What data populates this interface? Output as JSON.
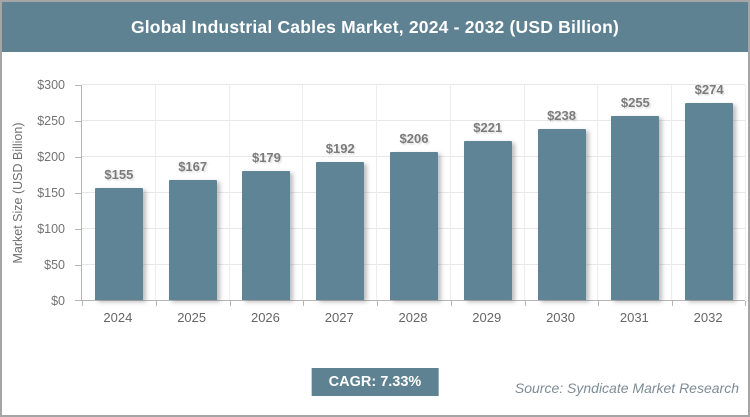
{
  "header": {
    "title": "Global Industrial Cables Market, 2024 - 2032 (USD Billion)"
  },
  "chart_data": {
    "type": "bar",
    "title": "Global Industrial Cables Market, 2024 - 2032 (USD Billion)",
    "categories": [
      "2024",
      "2025",
      "2026",
      "2027",
      "2028",
      "2029",
      "2030",
      "2031",
      "2032"
    ],
    "values": [
      155,
      167,
      179,
      192,
      206,
      221,
      238,
      255,
      274
    ],
    "bar_labels": [
      "$155",
      "$167",
      "$179",
      "$192",
      "$206",
      "$221",
      "$238",
      "$255",
      "$274"
    ],
    "xlabel": "",
    "ylabel": "Market Size (USD Billion)",
    "ylim": [
      0,
      300
    ],
    "yticks": [
      {
        "value": 0,
        "label": "$0"
      },
      {
        "value": 50,
        "label": "$50"
      },
      {
        "value": 100,
        "label": "$100"
      },
      {
        "value": 150,
        "label": "$150"
      },
      {
        "value": 200,
        "label": "$200"
      },
      {
        "value": 250,
        "label": "$250"
      },
      {
        "value": 300,
        "label": "$300"
      }
    ],
    "grid": true,
    "legend": "none"
  },
  "footer": {
    "cagr_label": "CAGR: 7.33%",
    "source": "Source: Syndicate Market Research"
  },
  "colors": {
    "primary": "#5e8292",
    "bar": "#5f8495",
    "title_text": "#ffffff",
    "axis_text": "#737373",
    "data_label_text": "#7b7b7b",
    "source_text": "#7e8c96",
    "gridline": "#e7e7e7",
    "frame_border": "#a5a5a5"
  }
}
